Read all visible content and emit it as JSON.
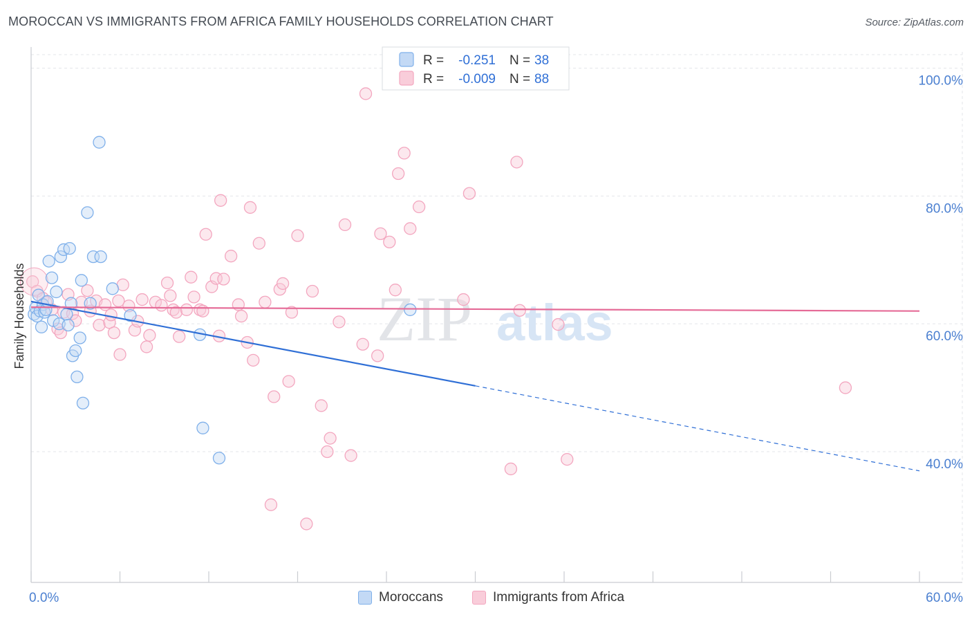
{
  "header": {
    "title": "MOROCCAN VS IMMIGRANTS FROM AFRICA FAMILY HOUSEHOLDS CORRELATION CHART",
    "source": "Source: ZipAtlas.com"
  },
  "watermark": {
    "zip": "ZIP",
    "atlas": "atlas"
  },
  "chart_data": {
    "type": "scatter",
    "title": "MOROCCAN VS IMMIGRANTS FROM AFRICA FAMILY HOUSEHOLDS CORRELATION CHART",
    "xlabel": "",
    "ylabel": "Family Households",
    "xlim": [
      0,
      60
    ],
    "ylim": [
      20,
      102
    ],
    "x_tick_labels": [
      "0.0%",
      "60.0%"
    ],
    "y_ticks": [
      40,
      60,
      80,
      100
    ],
    "y_tick_labels": [
      "40.0%",
      "60.0%",
      "80.0%",
      "100.0%"
    ],
    "grid": true,
    "legend_placement": "top-center",
    "colors": {
      "moroccans": "#7fb0ea",
      "moroccans_line": "#2f6fd6",
      "africa": "#f3a6bf",
      "africa_line": "#e56b97",
      "axis_text": "#4a7fd0"
    },
    "stats": [
      {
        "r_label": "R =",
        "r_value": "-0.251",
        "n_label": "N =",
        "n_value": "38"
      },
      {
        "r_label": "R =",
        "r_value": "-0.009",
        "n_label": "N =",
        "n_value": "88"
      }
    ],
    "series": [
      {
        "name": "Moroccans",
        "trend": {
          "x0": 0,
          "y0": 63.5,
          "x1": 30,
          "y1": 50.3,
          "dashed_to_x": 60,
          "dashed_to_y": 37.0
        },
        "points": [
          [
            0.2,
            61.5
          ],
          [
            0.3,
            62.5
          ],
          [
            0.4,
            61.2
          ],
          [
            0.5,
            64.5
          ],
          [
            0.6,
            62.0
          ],
          [
            0.7,
            59.5
          ],
          [
            0.8,
            63.0
          ],
          [
            0.9,
            61.8
          ],
          [
            1.0,
            62.2
          ],
          [
            1.1,
            63.5
          ],
          [
            1.2,
            69.8
          ],
          [
            1.4,
            67.2
          ],
          [
            1.5,
            60.5
          ],
          [
            1.7,
            65.0
          ],
          [
            1.9,
            60.0
          ],
          [
            2.0,
            70.5
          ],
          [
            2.2,
            71.6
          ],
          [
            2.4,
            61.5
          ],
          [
            2.5,
            59.8
          ],
          [
            2.6,
            71.8
          ],
          [
            2.7,
            63.2
          ],
          [
            2.8,
            55.0
          ],
          [
            3.0,
            55.8
          ],
          [
            3.1,
            51.7
          ],
          [
            3.3,
            57.8
          ],
          [
            3.4,
            66.8
          ],
          [
            3.5,
            47.6
          ],
          [
            3.8,
            77.4
          ],
          [
            4.0,
            63.2
          ],
          [
            4.2,
            70.5
          ],
          [
            4.6,
            88.4
          ],
          [
            4.7,
            70.5
          ],
          [
            5.5,
            65.5
          ],
          [
            6.7,
            61.3
          ],
          [
            11.4,
            58.3
          ],
          [
            11.6,
            43.7
          ],
          [
            12.7,
            39.0
          ],
          [
            25.6,
            62.2
          ]
        ]
      },
      {
        "name": "Immigrants from Africa",
        "trend": {
          "x0": 0,
          "y0": 62.6,
          "x1": 60,
          "y1": 62.0
        },
        "points": [
          [
            0.1,
            66.6
          ],
          [
            0.4,
            65.1
          ],
          [
            0.8,
            64.0
          ],
          [
            1.0,
            63.4
          ],
          [
            1.4,
            62.2
          ],
          [
            1.8,
            59.2
          ],
          [
            2.0,
            58.6
          ],
          [
            2.2,
            61.8
          ],
          [
            2.5,
            64.6
          ],
          [
            2.8,
            61.6
          ],
          [
            3.0,
            60.5
          ],
          [
            3.4,
            63.4
          ],
          [
            3.8,
            65.2
          ],
          [
            4.0,
            62.0
          ],
          [
            4.4,
            63.6
          ],
          [
            4.6,
            59.8
          ],
          [
            5.0,
            63.0
          ],
          [
            5.3,
            60.2
          ],
          [
            5.4,
            61.4
          ],
          [
            5.6,
            58.6
          ],
          [
            5.9,
            63.6
          ],
          [
            6.0,
            55.2
          ],
          [
            6.2,
            66.1
          ],
          [
            6.6,
            62.8
          ],
          [
            7.0,
            59.0
          ],
          [
            7.2,
            60.4
          ],
          [
            7.5,
            63.8
          ],
          [
            7.8,
            56.4
          ],
          [
            8.0,
            58.2
          ],
          [
            8.4,
            63.4
          ],
          [
            8.8,
            62.9
          ],
          [
            9.2,
            66.4
          ],
          [
            9.4,
            64.4
          ],
          [
            9.6,
            62.2
          ],
          [
            9.8,
            61.8
          ],
          [
            10.0,
            58.0
          ],
          [
            10.5,
            62.2
          ],
          [
            10.8,
            67.3
          ],
          [
            11.0,
            64.2
          ],
          [
            11.4,
            62.2
          ],
          [
            11.6,
            62.0
          ],
          [
            11.8,
            74.0
          ],
          [
            12.2,
            65.8
          ],
          [
            12.5,
            67.1
          ],
          [
            12.7,
            58.1
          ],
          [
            12.8,
            79.3
          ],
          [
            13.0,
            67.0
          ],
          [
            13.5,
            70.6
          ],
          [
            14.0,
            63.0
          ],
          [
            14.2,
            61.2
          ],
          [
            14.6,
            57.1
          ],
          [
            14.8,
            78.2
          ],
          [
            15.0,
            54.3
          ],
          [
            15.4,
            72.6
          ],
          [
            15.8,
            63.4
          ],
          [
            16.2,
            31.7
          ],
          [
            16.4,
            48.6
          ],
          [
            16.8,
            65.4
          ],
          [
            17.0,
            66.3
          ],
          [
            17.4,
            51.0
          ],
          [
            17.6,
            61.8
          ],
          [
            18.0,
            73.8
          ],
          [
            18.6,
            28.7
          ],
          [
            19.0,
            65.1
          ],
          [
            19.6,
            47.2
          ],
          [
            20.0,
            40.0
          ],
          [
            20.2,
            42.1
          ],
          [
            20.8,
            60.3
          ],
          [
            21.2,
            75.5
          ],
          [
            21.6,
            39.4
          ],
          [
            22.4,
            56.8
          ],
          [
            22.6,
            96.0
          ],
          [
            23.4,
            55.0
          ],
          [
            23.6,
            74.1
          ],
          [
            24.2,
            72.8
          ],
          [
            24.6,
            65.3
          ],
          [
            24.8,
            83.5
          ],
          [
            25.2,
            86.7
          ],
          [
            25.6,
            74.9
          ],
          [
            26.2,
            78.3
          ],
          [
            29.2,
            63.8
          ],
          [
            29.6,
            80.4
          ],
          [
            32.4,
            37.3
          ],
          [
            32.8,
            85.3
          ],
          [
            35.6,
            59.9
          ],
          [
            36.2,
            38.8
          ],
          [
            55.0,
            50.0
          ],
          [
            33.0,
            62.1
          ]
        ]
      }
    ]
  },
  "bottom_legend": [
    "Moroccans",
    "Immigrants from Africa"
  ]
}
